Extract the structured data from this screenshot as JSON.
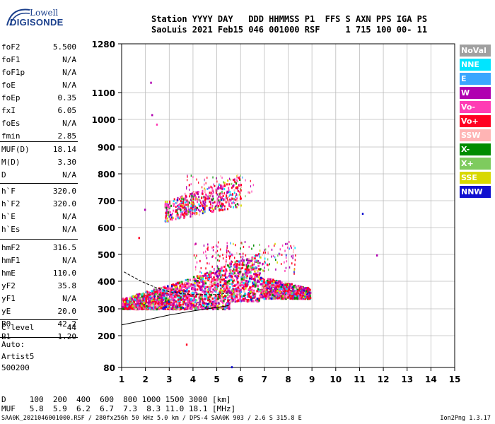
{
  "logo": {
    "line1": "Lowell",
    "line2": "DIGISONDE"
  },
  "header": {
    "line1": "Station YYYY DAY   DDD HHMMSS P1  FFS S AXN PPS IGA PS",
    "line2": "SaoLuis 2021 Feb15 046 001000 RSF     1 715 100 00- 11"
  },
  "params": [
    {
      "name": "foF2",
      "value": "5.500"
    },
    {
      "name": "foF1",
      "value": "N/A"
    },
    {
      "name": "foF1p",
      "value": "N/A"
    },
    {
      "name": "foE",
      "value": "N/A"
    },
    {
      "name": "foEp",
      "value": "0.35"
    },
    {
      "name": "fxI",
      "value": "6.05"
    },
    {
      "name": "foEs",
      "value": "N/A"
    },
    {
      "name": "fmin",
      "value": "2.85"
    },
    {
      "name": "MUF(D)",
      "value": "18.14"
    },
    {
      "name": "M(D)",
      "value": "3.30"
    },
    {
      "name": "D",
      "value": "N/A"
    },
    {
      "name": "h`F",
      "value": "320.0"
    },
    {
      "name": "h`F2",
      "value": "320.0"
    },
    {
      "name": "h`E",
      "value": "N/A"
    },
    {
      "name": "h`Es",
      "value": "N/A"
    },
    {
      "name": "hmF2",
      "value": "316.5"
    },
    {
      "name": "hmF1",
      "value": "N/A"
    },
    {
      "name": "hmE",
      "value": "110.0"
    },
    {
      "name": "yF2",
      "value": "35.8"
    },
    {
      "name": "yF1",
      "value": "N/A"
    },
    {
      "name": "yE",
      "value": "20.0"
    },
    {
      "name": "B0",
      "value": "42.2"
    },
    {
      "name": "B1",
      "value": "1.20"
    },
    {
      "name": "C-level",
      "value": "44"
    }
  ],
  "auto": {
    "line1": "Auto:",
    "line2": "Artist5",
    "line3": "500200"
  },
  "legend": [
    {
      "label": "NoVal",
      "color": "#a0a0a0"
    },
    {
      "label": "NNE",
      "color": "#00e5ff"
    },
    {
      "label": "E",
      "color": "#3aa6ff"
    },
    {
      "label": "W",
      "color": "#b000b0"
    },
    {
      "label": "Vo-",
      "color": "#ff3cb4"
    },
    {
      "label": "Vo+",
      "color": "#ff0022"
    },
    {
      "label": "SSW",
      "color": "#ffb4b4"
    },
    {
      "label": "X-",
      "color": "#008c00"
    },
    {
      "label": "X+",
      "color": "#7ecb5e"
    },
    {
      "label": "SSE",
      "color": "#d8d800"
    },
    {
      "label": "NNW",
      "color": "#1010d0"
    }
  ],
  "muf_table": {
    "row1": "D     100  200  400  600  800 1000 1500 3000 [km]",
    "row2": "MUF   5.8  5.9  6.2  6.7  7.3  8.3 11.0 18.1 [MHz]"
  },
  "footer": {
    "left": "SAA0K_2021046001000.RSF / 280fx256h 50 kHz 5.0 km / DPS-4 SAA0K 903 / 2.6 S 315.8 E",
    "right": "Ion2Png 1.3.17"
  },
  "chart_data": {
    "type": "scatter",
    "xlabel": "",
    "ylabel": "",
    "xlim": [
      1,
      15
    ],
    "ylim": [
      80,
      1280
    ],
    "x_ticks": [
      1,
      2,
      3,
      4,
      5,
      6,
      7,
      8,
      9,
      10,
      11,
      12,
      13,
      14,
      15
    ],
    "y_ticks": [
      80,
      200,
      300,
      400,
      500,
      600,
      700,
      800,
      900,
      1000,
      1100,
      1280
    ],
    "grid": true,
    "virtual_height_trace_regions": [
      {
        "mode": "F2 main trace",
        "freq_range": [
          1.0,
          8.8
        ],
        "height_range": [
          300,
          520
        ]
      },
      {
        "mode": "F2 second hop",
        "freq_range": [
          2.8,
          6.6
        ],
        "height_range": [
          620,
          800
        ]
      }
    ],
    "isolated_points": [
      {
        "x": 2.2,
        "y": 1140,
        "color": "#b000b0"
      },
      {
        "x": 2.25,
        "y": 1020,
        "color": "#b000b0"
      },
      {
        "x": 2.45,
        "y": 985,
        "color": "#ff3cb4"
      },
      {
        "x": 1.95,
        "y": 670,
        "color": "#b000b0"
      },
      {
        "x": 1.7,
        "y": 565,
        "color": "#ff0022"
      },
      {
        "x": 3.7,
        "y": 170,
        "color": "#ff0022"
      },
      {
        "x": 5.6,
        "y": 85,
        "color": "#1010d0"
      },
      {
        "x": 11.1,
        "y": 655,
        "color": "#1010d0"
      },
      {
        "x": 11.7,
        "y": 500,
        "color": "#b000b0"
      }
    ],
    "profile_curve": [
      [
        1.0,
        240
      ],
      [
        2.0,
        258
      ],
      [
        3.0,
        277
      ],
      [
        4.0,
        292
      ],
      [
        5.0,
        305
      ],
      [
        5.5,
        312
      ]
    ],
    "ordinary_trace_curve": [
      [
        1.1,
        435
      ],
      [
        1.6,
        410
      ],
      [
        2.0,
        393
      ],
      [
        2.5,
        375
      ],
      [
        3.0,
        362
      ],
      [
        3.5,
        355
      ],
      [
        4.0,
        352
      ],
      [
        4.5,
        351
      ],
      [
        5.0,
        352
      ],
      [
        5.5,
        357
      ]
    ]
  }
}
